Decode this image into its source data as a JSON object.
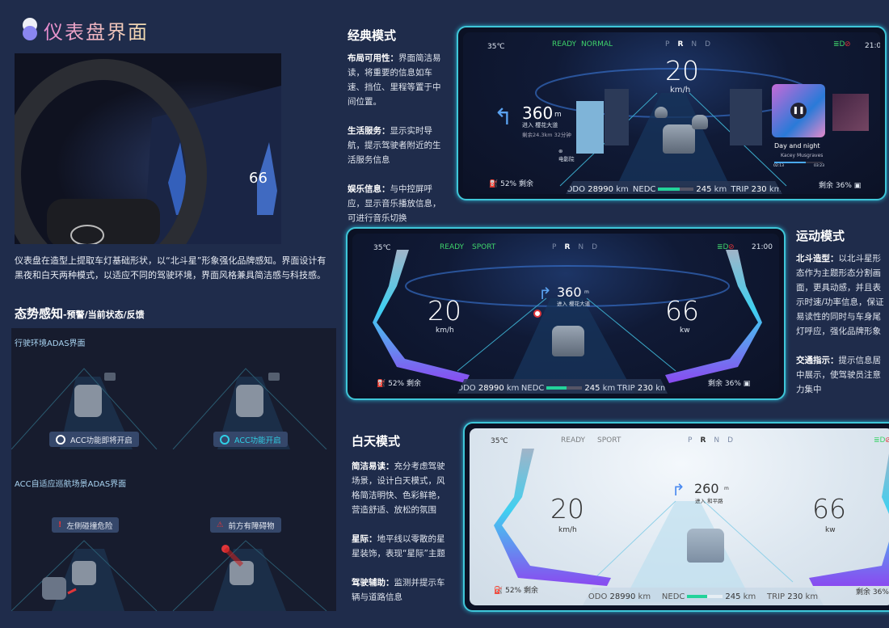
{
  "header": {
    "title": "仪表盘界面"
  },
  "intro": {
    "paragraph": "仪表盘在造型上提取车灯基础形状，以“北斗星”形象强化品牌感知。界面设计有黑夜和白天两种模式，以适应不同的驾驶环境，界面风格兼具简洁感与科技感。"
  },
  "situational": {
    "title": "态势感知",
    "subtitle": "-预警/当前状态/反馈",
    "section1_label": "行驶环境ADAS界面",
    "badges": [
      {
        "label": "ACC功能即将开启",
        "icon": "steering-wheel-icon"
      },
      {
        "label": "ACC功能开启",
        "icon": "steering-wheel-icon",
        "color": "#2fd0e6"
      }
    ],
    "section2_label": "ACC自适应巡航场景ADAS界面",
    "warnings": [
      {
        "label": "左侧碰撞危险",
        "icon": "exclamation-warning-icon"
      },
      {
        "label": "前方有障碍物",
        "icon": "triangle-warning-icon"
      }
    ]
  },
  "classic": {
    "heading": "经典模式",
    "points": [
      {
        "label": "布局可用性：",
        "text": "界面简洁易读，将重要的信息如车速、挡位、里程等置于中间位置。"
      },
      {
        "label": "生活服务：",
        "text": "显示实时导航，提示驾驶者附近的生活服务信息"
      },
      {
        "label": "娱乐信息：",
        "text": "与中控屏呼应，显示音乐播放信息，可进行音乐切换"
      }
    ],
    "cluster": {
      "temp": "35℃",
      "ready": "READY",
      "mode": "NORMAL",
      "gears": [
        "P",
        "R",
        "N",
        "D"
      ],
      "active_gear": "R",
      "time": "21:00",
      "speed": "20",
      "speed_unit": "km/h",
      "nav_distance": "360",
      "nav_unit": "m",
      "nav_enter": "进入",
      "nav_road": "樱花大道",
      "nav_remaining": "剩余24.3km  32分钟",
      "poi": "电影院",
      "fuel": "52%",
      "fuel_label": "剩余",
      "battery_label": "剩余",
      "battery": "36%",
      "odo_label": "ODO",
      "odo": "28990",
      "km": "km",
      "nedc_label": "NEDC",
      "nedc": "245",
      "nedc_fill": 0.6,
      "trip_label": "TRIP",
      "trip": "230",
      "music": {
        "title": "Day and night",
        "artist": "Kacey Musgraves",
        "elapsed": "02:13",
        "total": "03:23",
        "progress": 0.65
      }
    }
  },
  "sport": {
    "heading": "运动模式",
    "points": [
      {
        "label": "北斗造型：",
        "text": "以北斗星形态作为主题形态分割画面，更具动感，并且表示时速/功率信息，保证易读性的同时与车身尾灯呼应，强化品牌形象"
      },
      {
        "label": "交通指示：",
        "text": "提示信息居中展示，使驾驶员注意力集中"
      }
    ],
    "cluster": {
      "temp": "35℃",
      "ready": "READY",
      "mode": "SPORT",
      "gears": [
        "P",
        "R",
        "N",
        "D"
      ],
      "time": "21:00",
      "speed": "20",
      "speed_unit": "km/h",
      "power": "66",
      "power_unit": "kw",
      "nav_distance": "360",
      "nav_unit": "m",
      "nav_enter": "进入",
      "nav_road": "樱花大道",
      "fuel": "52%",
      "fuel_label": "剩余",
      "battery_label": "剩余",
      "battery": "36%",
      "odo_label": "ODO",
      "odo": "28990",
      "km": "km",
      "nedc_label": "NEDC",
      "nedc": "245",
      "nedc_fill": 0.55,
      "trip_label": "TRIP",
      "trip": "230"
    }
  },
  "day": {
    "heading": "白天模式",
    "points": [
      {
        "label": "简洁易读：",
        "text": "充分考虑驾驶场景，设计白天模式，风格简洁明快、色彩鲜艳，营造舒适、放松的氛围"
      },
      {
        "label": "星际：",
        "text": "地平线以零散的星星装饰，表现“星际”主题"
      },
      {
        "label": "驾驶辅助：",
        "text": "监测并提示车辆与道路信息"
      }
    ],
    "cluster": {
      "temp": "35℃",
      "ready": "READY",
      "mode": "SPORT",
      "gears": [
        "P",
        "R",
        "N",
        "D"
      ],
      "speed": "20",
      "speed_unit": "km/h",
      "power": "66",
      "power_unit": "kw",
      "nav_distance": "260",
      "nav_unit": "m",
      "nav_enter": "进入",
      "nav_road": "和平路",
      "fuel": "52%",
      "fuel_label": "剩余",
      "battery_label": "剩余",
      "battery": "36%",
      "odo_label": "ODO",
      "odo": "28990",
      "km": "km",
      "nedc_label": "NEDC",
      "nedc": "245",
      "nedc_fill": 0.55,
      "trip_label": "TRIP",
      "trip": "230"
    }
  },
  "colors": {
    "background": "#1f2c4b",
    "accent_cyan": "#3fc6d8",
    "ready_green": "#3fd36b",
    "warning_red": "#e0363a"
  }
}
